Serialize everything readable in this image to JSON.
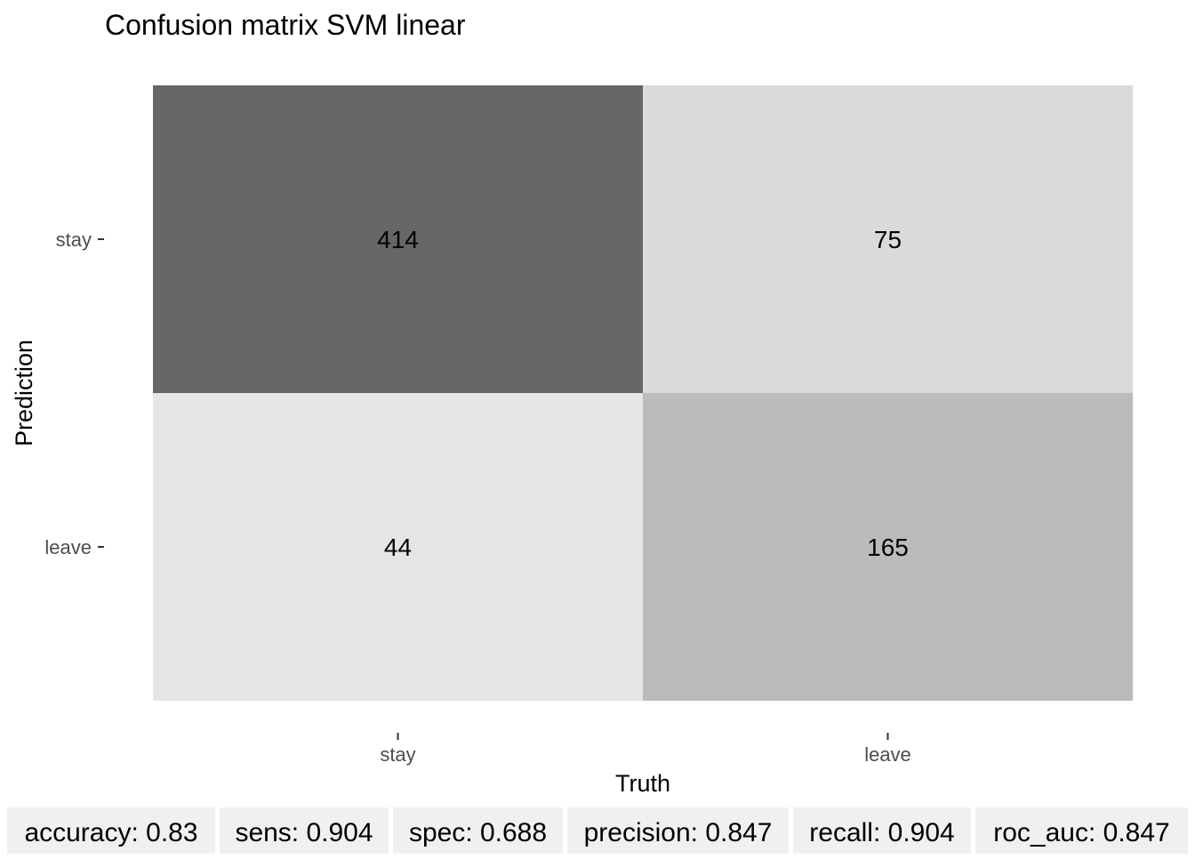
{
  "chart_data": {
    "type": "heatmap",
    "title": "Confusion matrix SVM linear",
    "xlabel": "Truth",
    "ylabel": "Prediction",
    "x_categories": [
      "stay",
      "leave"
    ],
    "y_categories": [
      "stay",
      "leave"
    ],
    "values": [
      [
        414,
        75
      ],
      [
        44,
        165
      ]
    ],
    "colors": {
      "scale_low": "#e5e5e5",
      "scale_high": "#666666",
      "text": "#000000"
    },
    "grid": false,
    "legend": "none"
  },
  "metrics": [
    {
      "label": "accuracy: 0.83"
    },
    {
      "label": "sens: 0.904"
    },
    {
      "label": "spec: 0.688"
    },
    {
      "label": "precision: 0.847"
    },
    {
      "label": "recall: 0.904"
    },
    {
      "label": "roc_auc: 0.847"
    }
  ]
}
